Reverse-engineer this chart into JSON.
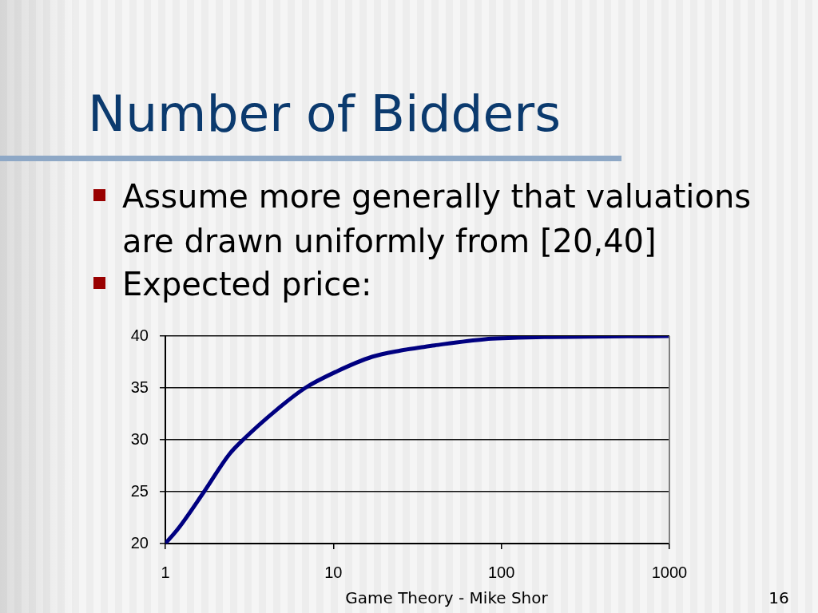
{
  "chart_data": {
    "type": "line",
    "title": "Number of Bidders",
    "annotations": [
      "Assume more generally that valuations are drawn uniformly from [20,40]",
      "Expected price:",
      "Game Theory - Mike Shor",
      "16"
    ],
    "x": [
      1,
      1.2,
      1.7,
      2.4,
      2.9,
      4.6,
      6.8,
      10.5,
      17,
      25,
      33,
      40,
      80,
      110,
      180,
      1000
    ],
    "series": [
      {
        "color": "#000080",
        "values": [
          20.0,
          21.5,
          25.0,
          28.6,
          30.0,
          32.9,
          35.0,
          36.6,
          38.0,
          38.6,
          38.9,
          39.1,
          39.7,
          39.8,
          39.9,
          40.0
        ]
      }
    ],
    "log": "x",
    "xlim": [
      1,
      1000
    ],
    "xticks": [
      1,
      10,
      100,
      1000
    ],
    "ylim": [
      20,
      40
    ],
    "yticks": [
      20,
      25,
      30,
      35,
      40
    ],
    "grid": "y",
    "marker": "none",
    "line_style": "solid"
  }
}
